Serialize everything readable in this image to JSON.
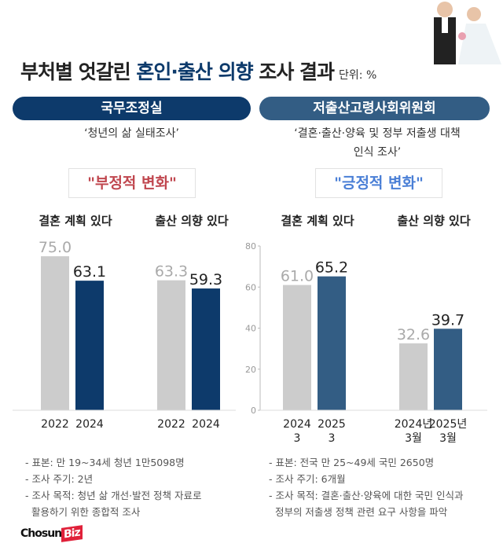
{
  "title": {
    "part1": "부처별 엇갈린 ",
    "highlight": "혼인·출산 의향",
    "part2": " 조사 결과",
    "unit": "단위: %"
  },
  "left": {
    "org": "국무조정실",
    "survey": "‘청년의 삶 실태조사’",
    "badge": "\"부정적 변화\"",
    "badge_color": "#c0474f",
    "notes": [
      "- 표본: 만 19~34세 청년 1만5098명",
      "- 조사 주기: 2년",
      "- 조사 목적: 청년 삶 개선·발전 정책 자료로",
      "  활용하기 위한 종합적 조사"
    ]
  },
  "right": {
    "org": "저출산고령사회위원회",
    "survey1": "‘결혼·출산·양육 및 정부 저출생 대책",
    "survey2": "인식 조사’",
    "badge": "\"긍정적 변화\"",
    "badge_color": "#4a7fd6",
    "notes": [
      "- 표본: 전국 만 25~49세 국민 2650명",
      "- 조사 주기: 6개월",
      "- 조사 목적: 결혼·출산·양육에 대한 국민 인식과",
      "  정부의 저출생 정책 관련 요구 사항을 파악"
    ]
  },
  "logo": {
    "text1": "Chosun",
    "text2": "Biz"
  },
  "colors": {
    "gray": "#cccccc",
    "navy": "#0d3a6b",
    "steel": "#335d84"
  },
  "chart_data": [
    {
      "type": "bar",
      "title": "결혼 계획 있다",
      "categories": [
        "2022",
        "2024"
      ],
      "values": [
        75.0,
        63.1
      ],
      "ylim": [
        0,
        80
      ]
    },
    {
      "type": "bar",
      "title": "출산 의향 있다",
      "categories": [
        "2022",
        "2024"
      ],
      "values": [
        63.3,
        59.3
      ],
      "ylim": [
        0,
        80
      ]
    },
    {
      "type": "bar",
      "title": "결혼 계획 있다",
      "categories": [
        "2024\n3",
        "2025\n3"
      ],
      "values": [
        61.0,
        65.2
      ],
      "ylim": [
        0,
        80
      ],
      "yticks": [
        0,
        20,
        40,
        60,
        80
      ]
    },
    {
      "type": "bar",
      "title": "출산 의향 있다",
      "categories": [
        "2024년\n3월",
        "2025년\n3월"
      ],
      "values": [
        32.6,
        39.7
      ],
      "ylim": [
        0,
        80
      ]
    }
  ]
}
